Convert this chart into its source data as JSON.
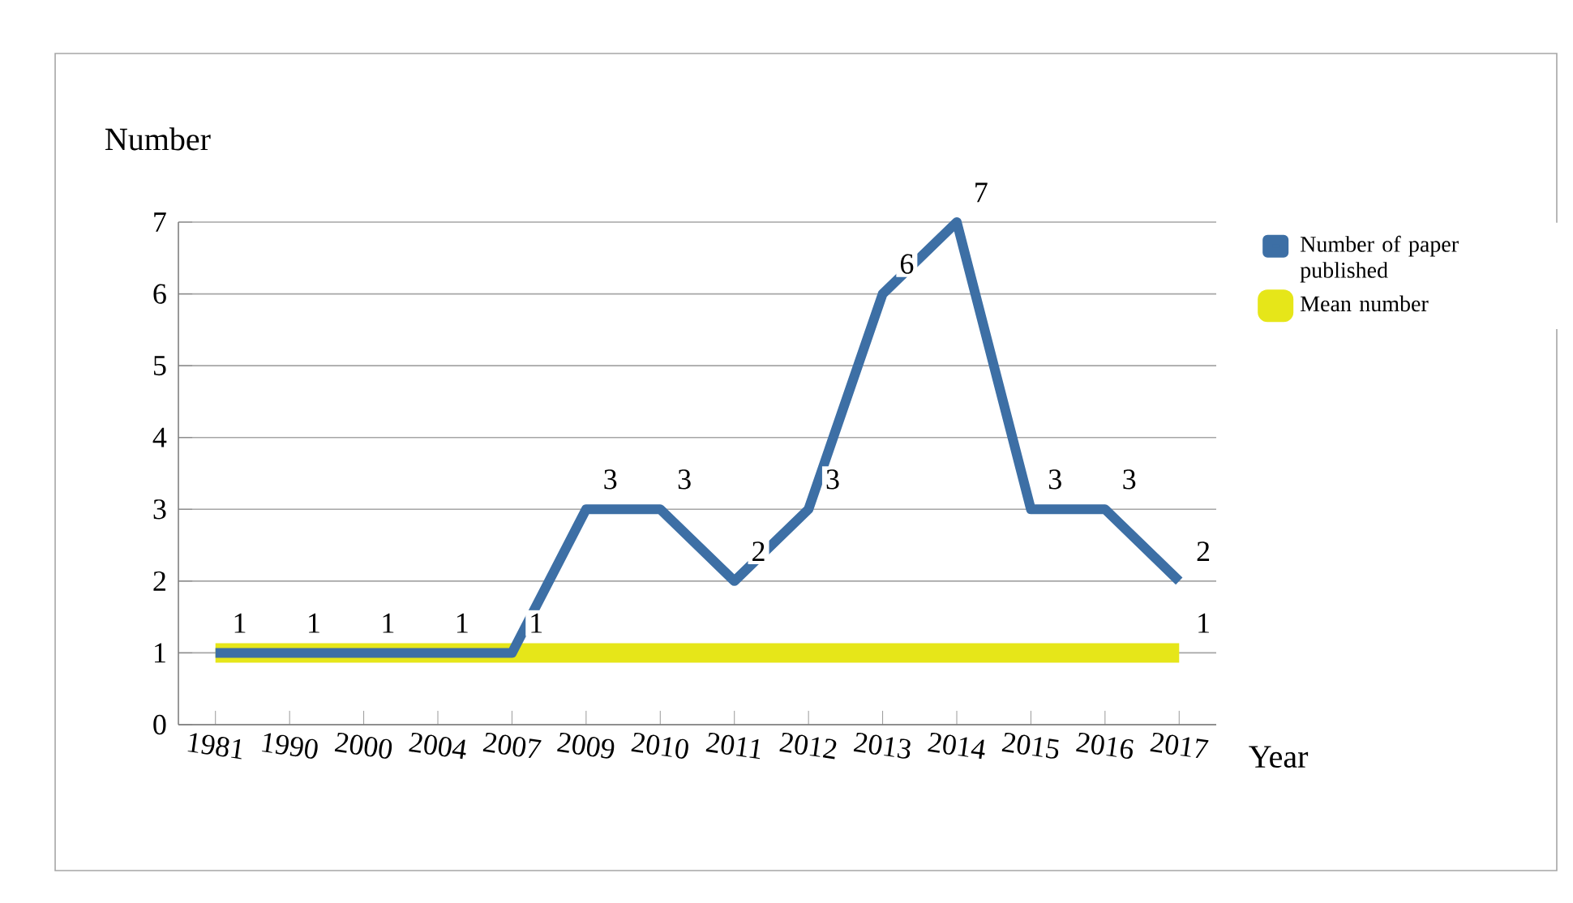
{
  "chart_data": {
    "type": "line",
    "xlabel": "Year",
    "ylabel": "Number",
    "categories": [
      "1981",
      "1990",
      "2000",
      "2004",
      "2007",
      "2009",
      "2010",
      "2011",
      "2012",
      "2013",
      "2014",
      "2015",
      "2016",
      "2017"
    ],
    "series": [
      {
        "name": "Number of paper published",
        "color": "#3d6fa5",
        "values": [
          1,
          1,
          1,
          1,
          1,
          3,
          3,
          2,
          3,
          6,
          7,
          3,
          3,
          2
        ],
        "value_labels": [
          "1",
          "1",
          "1",
          "1",
          "1",
          "3",
          "3",
          "2",
          "3",
          "6",
          "7",
          "3",
          "3",
          "2"
        ]
      },
      {
        "name": "Mean number",
        "color": "#e6e619",
        "values": [
          1,
          1,
          1,
          1,
          1,
          1,
          1,
          1,
          1,
          1,
          1,
          1,
          1,
          1
        ],
        "value_labels": [
          null,
          null,
          null,
          null,
          null,
          null,
          null,
          null,
          null,
          null,
          null,
          null,
          null,
          "1"
        ]
      }
    ],
    "ylim": [
      0,
      7
    ],
    "yticks": [
      0,
      1,
      2,
      3,
      4,
      5,
      6,
      7
    ],
    "grid": "y",
    "legend": "right",
    "marker": "none",
    "line_style": "solid"
  }
}
